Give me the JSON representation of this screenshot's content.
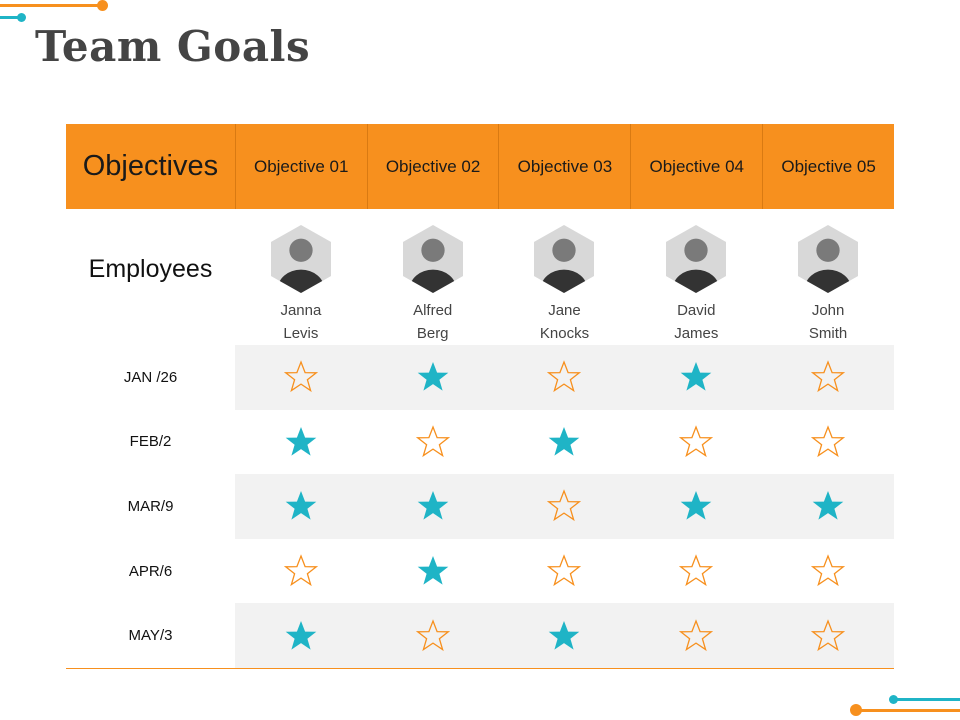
{
  "title": "Team Goals",
  "colors": {
    "accent_orange": "#F7901E",
    "accent_teal": "#1FB4C6",
    "row_shade": "#F2F2F2"
  },
  "header": {
    "first_label": "Objectives",
    "objectives": [
      "Objective 01",
      "Objective 02",
      "Objective 03",
      "Objective 04",
      "Objective 05"
    ]
  },
  "employees_label": "Employees",
  "employees": [
    {
      "name": "Janna\nLevis",
      "avatar_icon": "person-photo-icon"
    },
    {
      "name": "Alfred\nBerg",
      "avatar_icon": "person-photo-icon"
    },
    {
      "name": "Jane\nKnocks",
      "avatar_icon": "person-photo-icon"
    },
    {
      "name": "David\nJames",
      "avatar_icon": "person-photo-icon"
    },
    {
      "name": "John\nSmith",
      "avatar_icon": "person-photo-icon"
    }
  ],
  "rows": [
    {
      "date": "JAN /26",
      "stars": [
        false,
        true,
        false,
        true,
        false
      ]
    },
    {
      "date": "FEB/2",
      "stars": [
        true,
        false,
        true,
        false,
        false
      ]
    },
    {
      "date": "MAR/9",
      "stars": [
        true,
        true,
        false,
        true,
        true
      ]
    },
    {
      "date": "APR/6",
      "stars": [
        false,
        true,
        false,
        false,
        false
      ]
    },
    {
      "date": "MAY/3",
      "stars": [
        true,
        false,
        true,
        false,
        false
      ]
    }
  ]
}
